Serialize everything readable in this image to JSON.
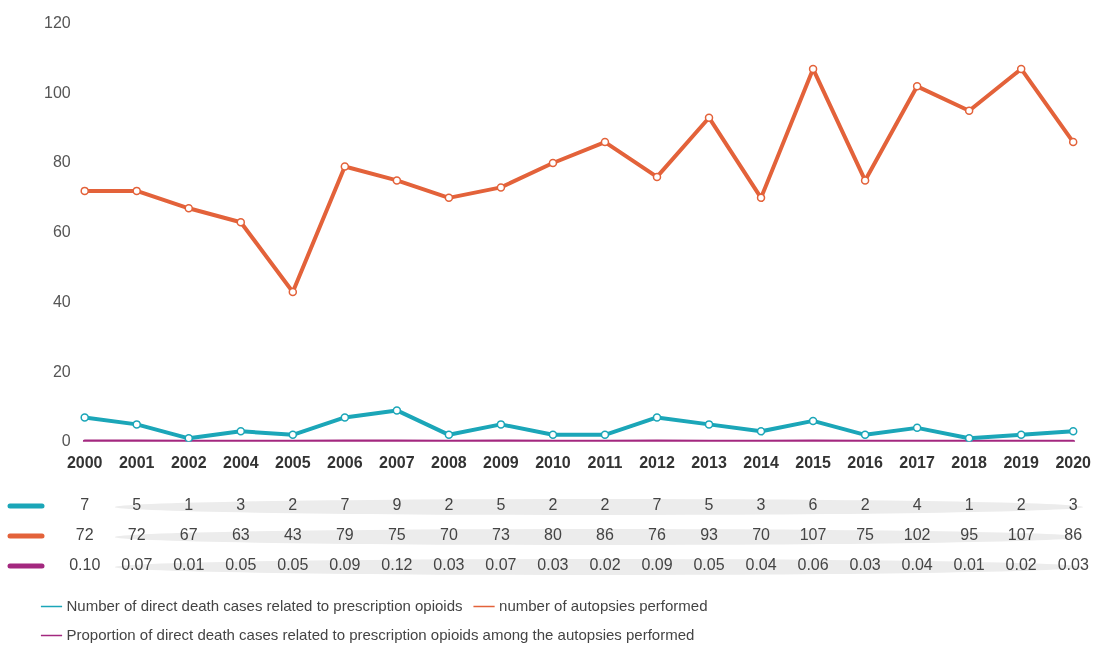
{
  "chart_data": {
    "type": "line",
    "categories": [
      "2000",
      "2001",
      "2002",
      "2004",
      "2005",
      "2006",
      "2007",
      "2008",
      "2009",
      "2010",
      "2011",
      "2012",
      "2013",
      "2014",
      "2015",
      "2016",
      "2017",
      "2018",
      "2019",
      "2020"
    ],
    "series": [
      {
        "name": "Number of direct death cases related to prescription opioids",
        "color": "#1ba6b8",
        "values": [
          7,
          5,
          1,
          3,
          2,
          7,
          9,
          2,
          5,
          2,
          2,
          7,
          5,
          3,
          6,
          2,
          4,
          1,
          2,
          3
        ]
      },
      {
        "name": "number of autopsies performed",
        "color": "#e3623a",
        "values": [
          72,
          72,
          67,
          63,
          43,
          79,
          75,
          70,
          73,
          80,
          86,
          76,
          93,
          70,
          107,
          75,
          102,
          95,
          107,
          86
        ]
      },
      {
        "name": "Proportion of direct death cases related to prescription opioids among the autopsies performed",
        "color": "#a3287f",
        "marker": "none",
        "values": [
          0.1,
          0.07,
          0.01,
          0.05,
          0.05,
          0.09,
          0.12,
          0.03,
          0.07,
          0.03,
          0.02,
          0.09,
          0.05,
          0.04,
          0.06,
          0.03,
          0.04,
          0.01,
          0.02,
          0.03
        ],
        "value_labels": [
          "0.10",
          "0.07",
          "0.01",
          "0.05",
          "0.05",
          "0.09",
          "0.12",
          "0.03",
          "0.07",
          "0.03",
          "0.02",
          "0.09",
          "0.05",
          "0.04",
          "0.06",
          "0.03",
          "0.04",
          "0.01",
          "0.02",
          "0.03"
        ]
      }
    ],
    "ylim": [
      0,
      120
    ],
    "yticks": [
      0,
      20,
      40,
      60,
      80,
      100,
      120
    ],
    "grid": false,
    "legend": "bottom",
    "marker": "circle",
    "line_style": "solid",
    "data_labels": true
  }
}
